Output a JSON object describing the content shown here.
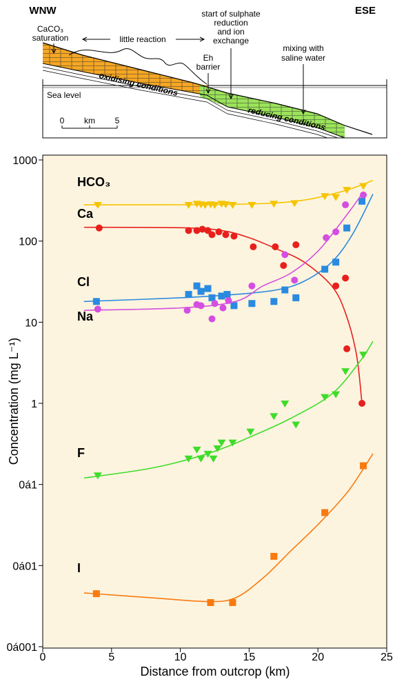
{
  "diagram": {
    "left": "WNW",
    "right": "ESE",
    "caco3": [
      "CaCO₃",
      "saturation"
    ],
    "little": "little reaction",
    "eh": [
      "Eh",
      "barrier"
    ],
    "sulphate": [
      "start of sulphate",
      "reduction",
      "and ion",
      "exchange"
    ],
    "mixing": [
      "mixing with",
      "saline water"
    ],
    "sea": "Sea level",
    "oxid": "oxidising conditions",
    "reduc": "reducing conditions",
    "scale": [
      "0",
      "km",
      "5"
    ]
  },
  "chart_data": {
    "type": "scatter",
    "xlabel": "Distance from outcrop (km)",
    "ylabel": "Concentration (mg L⁻¹)",
    "xlim": [
      0,
      25
    ],
    "xticks": [
      0,
      5,
      10,
      15,
      20,
      25
    ],
    "ylim": [
      0.001,
      1000
    ],
    "ylog": true,
    "yticks": [
      1000,
      100,
      10,
      1,
      {
        "value": 0.1,
        "label": "0á1"
      },
      {
        "value": 0.01,
        "label": "0á01"
      },
      {
        "value": 0.001,
        "label": "0á001"
      }
    ],
    "series": [
      {
        "name": "HCO₃",
        "color": "#f5c400",
        "marker": "tri",
        "x": [
          4,
          10.6,
          11.2,
          11.5,
          11.8,
          12.2,
          12.5,
          13,
          13.3,
          13.8,
          15.2,
          16.8,
          18.3,
          20.5,
          21.3,
          22.1,
          23.3
        ],
        "values": [
          280,
          280,
          290,
          285,
          280,
          285,
          280,
          290,
          285,
          280,
          280,
          290,
          295,
          360,
          350,
          430,
          480
        ],
        "fit_x": [
          3,
          8,
          12,
          16,
          19,
          22,
          24
        ],
        "fit_y": [
          280,
          280,
          282,
          290,
          320,
          420,
          560
        ]
      },
      {
        "name": "Ca",
        "color": "#e8201c",
        "marker": "circle",
        "x": [
          4.1,
          10.6,
          11.2,
          11.6,
          12.0,
          12.3,
          12.8,
          13.3,
          13.9,
          15.3,
          16.9,
          17.5,
          18.4,
          22.0,
          21.3,
          22.1,
          23.2
        ],
        "values": [
          145,
          135,
          135,
          140,
          135,
          120,
          130,
          120,
          115,
          85,
          85,
          50,
          90,
          35,
          28,
          4.7,
          1.0
        ],
        "fit_x": [
          3,
          10,
          13,
          15,
          17,
          19,
          21,
          22,
          22.8,
          23.2
        ],
        "fit_y": [
          148,
          146,
          135,
          110,
          80,
          55,
          28,
          13,
          4,
          1.0
        ]
      },
      {
        "name": "Cl",
        "color": "#2a8ae0",
        "marker": "square",
        "x": [
          3.9,
          10.6,
          11.2,
          11.5,
          12.0,
          12.3,
          13.0,
          13.4,
          13.9,
          15.2,
          16.8,
          17.6,
          18.4,
          20.5,
          21.3,
          22.1,
          23.2
        ],
        "values": [
          18,
          22,
          28,
          24,
          26,
          20,
          21,
          22,
          16,
          17,
          18,
          25,
          20,
          45,
          55,
          145,
          310
        ],
        "fit_x": [
          3,
          10,
          14,
          17,
          19,
          21,
          22.5,
          24
        ],
        "fit_y": [
          18,
          20,
          22,
          25,
          32,
          55,
          120,
          380
        ]
      },
      {
        "name": "Na",
        "color": "#d44ee0",
        "marker": "circle",
        "x": [
          4,
          10.5,
          11.2,
          11.5,
          12.3,
          12.5,
          13.1,
          13.5,
          15.2,
          17.6,
          18.3,
          20.6,
          21.3,
          22.0,
          23.3
        ],
        "values": [
          14.5,
          14,
          16.5,
          16,
          11,
          17,
          15,
          18.5,
          28,
          68,
          33,
          110,
          130,
          280,
          370
        ],
        "fit_x": [
          3,
          10,
          14,
          16,
          18,
          20,
          22,
          23.2
        ],
        "fit_y": [
          14,
          15,
          18,
          28,
          40,
          75,
          200,
          380
        ]
      },
      {
        "name": "F",
        "color": "#3fdc2a",
        "marker": "tri",
        "x": [
          4,
          10.6,
          11.2,
          11.5,
          12.0,
          12.4,
          12.7,
          13.0,
          13.8,
          15.1,
          16.8,
          17.6,
          18.4,
          20.5,
          21.3,
          22.0,
          23.3
        ],
        "values": [
          0.13,
          0.21,
          0.27,
          0.21,
          0.24,
          0.21,
          0.28,
          0.33,
          0.33,
          0.45,
          0.7,
          1.0,
          0.55,
          1.2,
          1.3,
          2.5,
          4.0
        ],
        "fit_x": [
          3,
          8,
          12,
          15,
          18,
          21,
          23,
          24
        ],
        "fit_y": [
          0.12,
          0.16,
          0.24,
          0.38,
          0.65,
          1.3,
          3.2,
          5.8
        ]
      },
      {
        "name": "I",
        "color": "#f87a10",
        "marker": "square",
        "x": [
          3.9,
          12.2,
          13.8,
          16.8,
          20.5,
          23.3
        ],
        "values": [
          0.0045,
          0.0035,
          0.0035,
          0.013,
          0.045,
          0.17
        ],
        "fit_x": [
          3,
          8,
          12,
          14,
          16,
          18,
          20,
          22,
          23,
          24
        ],
        "fit_y": [
          0.0046,
          0.004,
          0.0036,
          0.004,
          0.007,
          0.015,
          0.032,
          0.075,
          0.13,
          0.24
        ]
      }
    ]
  }
}
